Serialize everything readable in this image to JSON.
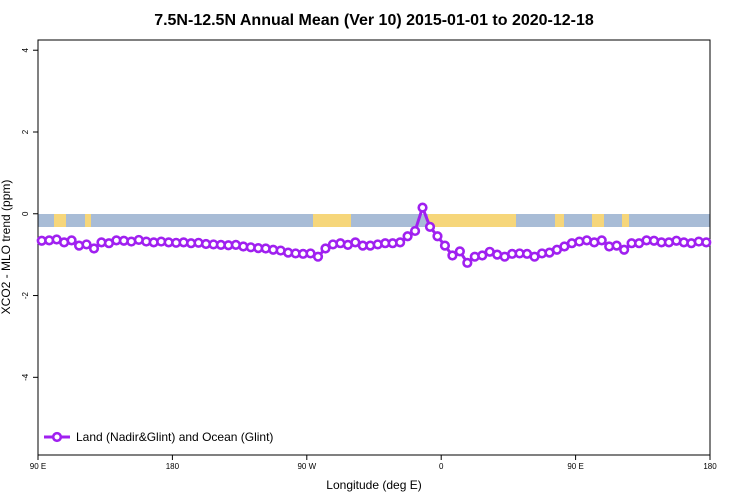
{
  "chart_data": {
    "type": "line",
    "title": "7.5N-12.5N Annual Mean (Ver 10)   2015-01-01 to 2020-12-18",
    "xlabel": "Longitude (deg E)",
    "ylabel": "XCO2 - MLO trend (ppm)",
    "x": [
      92.5,
      97.5,
      102.5,
      107.5,
      112.5,
      117.5,
      122.5,
      127.5,
      132.5,
      137.5,
      142.5,
      147.5,
      152.5,
      157.5,
      162.5,
      167.5,
      172.5,
      177.5,
      182.5,
      187.5,
      192.5,
      197.5,
      202.5,
      207.5,
      212.5,
      217.5,
      222.5,
      227.5,
      232.5,
      237.5,
      242.5,
      247.5,
      252.5,
      257.5,
      262.5,
      267.5,
      272.5,
      277.5,
      282.5,
      287.5,
      292.5,
      297.5,
      302.5,
      307.5,
      312.5,
      317.5,
      322.5,
      327.5,
      332.5,
      337.5,
      342.5,
      347.5,
      352.5,
      357.5,
      362.5,
      367.5,
      372.5,
      377.5,
      382.5,
      387.5,
      392.5,
      397.5,
      402.5,
      407.5,
      412.5,
      417.5,
      422.5,
      427.5,
      432.5,
      437.5,
      442.5,
      447.5,
      452.5,
      457.5,
      462.5,
      467.5,
      472.5,
      477.5,
      482.5,
      487.5,
      492.5,
      497.5,
      502.5,
      507.5,
      512.5,
      517.5,
      522.5,
      527.5,
      532.5,
      537.5
    ],
    "series": [
      {
        "name": "Land (Nadir&Glint) and Ocean (Glint)",
        "color": "#a020f0",
        "values": [
          -0.66,
          -0.65,
          -0.63,
          -0.7,
          -0.65,
          -0.78,
          -0.75,
          -0.85,
          -0.7,
          -0.72,
          -0.65,
          -0.66,
          -0.68,
          -0.64,
          -0.68,
          -0.7,
          -0.68,
          -0.7,
          -0.71,
          -0.7,
          -0.72,
          -0.71,
          -0.74,
          -0.75,
          -0.76,
          -0.77,
          -0.76,
          -0.8,
          -0.82,
          -0.84,
          -0.85,
          -0.88,
          -0.9,
          -0.95,
          -0.97,
          -0.98,
          -0.97,
          -1.05,
          -0.85,
          -0.75,
          -0.72,
          -0.76,
          -0.7,
          -0.78,
          -0.78,
          -0.75,
          -0.72,
          -0.72,
          -0.7,
          -0.55,
          -0.42,
          0.15,
          -0.32,
          -0.55,
          -0.78,
          -1.02,
          -0.92,
          -1.2,
          -1.05,
          -1.02,
          -0.93,
          -1.0,
          -1.05,
          -0.98,
          -0.97,
          -0.98,
          -1.05,
          -0.97,
          -0.95,
          -0.88,
          -0.8,
          -0.72,
          -0.68,
          -0.65,
          -0.7,
          -0.65,
          -0.8,
          -0.78,
          -0.88,
          -0.72,
          -0.72,
          -0.65,
          -0.66,
          -0.7,
          -0.7,
          -0.66,
          -0.7,
          -0.72,
          -0.68,
          -0.7
        ]
      }
    ],
    "xlim": [
      90,
      540
    ],
    "xticks": [
      {
        "value": 90,
        "label": "90 E"
      },
      180,
      {
        "value": 270,
        "label": "90 W"
      },
      {
        "value": 360,
        "label": "0"
      },
      {
        "value": 450,
        "label": "90 E"
      },
      {
        "value": 540,
        "label": "180"
      }
    ],
    "ylim": [
      -5.9,
      4.25
    ],
    "yticks": [
      -4,
      -2,
      0,
      2,
      4
    ],
    "legend": "bottom-left"
  }
}
